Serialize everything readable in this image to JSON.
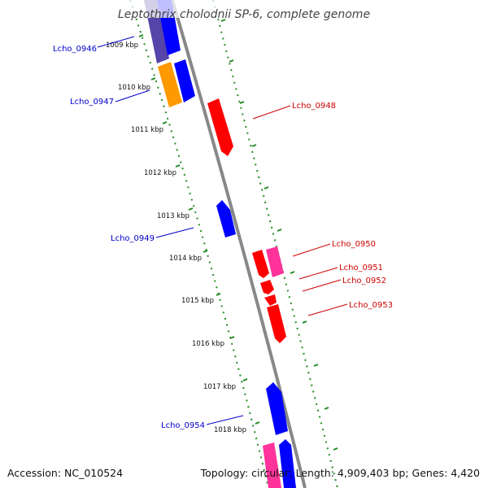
{
  "title": "Leptothrix cholodnii SP-6, complete genome",
  "footer": {
    "accession": "Accession: NC_010524",
    "summary": "Topology: circular; Length: 4,909,403 bp; Genes: 4,420"
  },
  "colors": {
    "forward_gene": "#0000ff",
    "reverse_gene": "#ff0000",
    "pink_gene": "#ff3399",
    "orange_gene": "#ff9900",
    "backbone": "#888888",
    "tick": "#228b22",
    "label_blue": "#0000cc",
    "label_red": "#cc0000"
  },
  "kbp_labels": [
    "1009 kbp",
    "1010 kbp",
    "1011 kbp",
    "1012 kbp",
    "1013 kbp",
    "1014 kbp",
    "1015 kbp",
    "1016 kbp",
    "1017 kbp",
    "1018 kbp"
  ],
  "gene_labels": {
    "left": [
      "Lcho_0946",
      "Lcho_0947",
      "Lcho_0949",
      "Lcho_0954"
    ],
    "right": [
      "Lcho_0948",
      "Lcho_0950",
      "Lcho_0951",
      "Lcho_0952",
      "Lcho_0953"
    ]
  }
}
